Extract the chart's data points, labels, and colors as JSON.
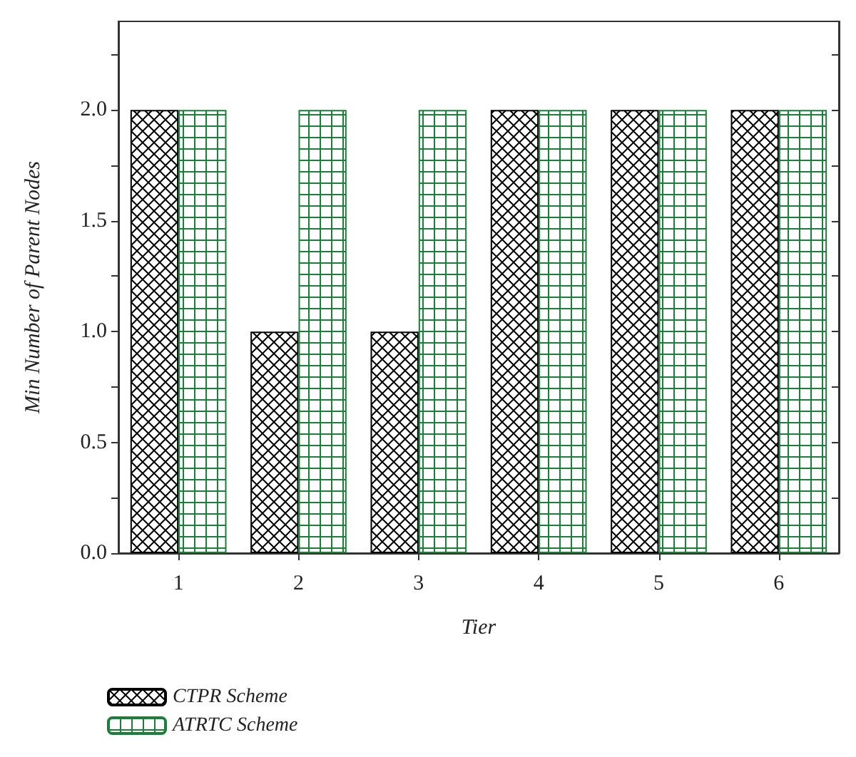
{
  "chart_data": {
    "type": "bar",
    "xlabel": "Tier",
    "ylabel": "Min Number of Parent Nodes",
    "categories": [
      "1",
      "2",
      "3",
      "4",
      "5",
      "6"
    ],
    "series": [
      {
        "name": "CTPR Scheme",
        "color": "#000000",
        "values": [
          2,
          1,
          1,
          2,
          2,
          2
        ]
      },
      {
        "name": "ATRTC Scheme",
        "color": "#1a7f37",
        "values": [
          2,
          2,
          2,
          2,
          2,
          2
        ]
      }
    ],
    "ylim": [
      0,
      2.4
    ],
    "yticks": [
      {
        "value": 0,
        "label": "0.0"
      },
      {
        "value": 0.25,
        "label": null
      },
      0.5,
      {
        "value": 0.75,
        "label": null
      },
      {
        "value": 1,
        "label": "1.0"
      },
      {
        "value": 1.25,
        "label": null
      },
      1.5,
      {
        "value": 1.75,
        "label": null
      },
      {
        "value": 2,
        "label": "2.0"
      },
      {
        "value": 2.25,
        "label": null
      }
    ],
    "grid": false,
    "legend": "bottom left"
  }
}
